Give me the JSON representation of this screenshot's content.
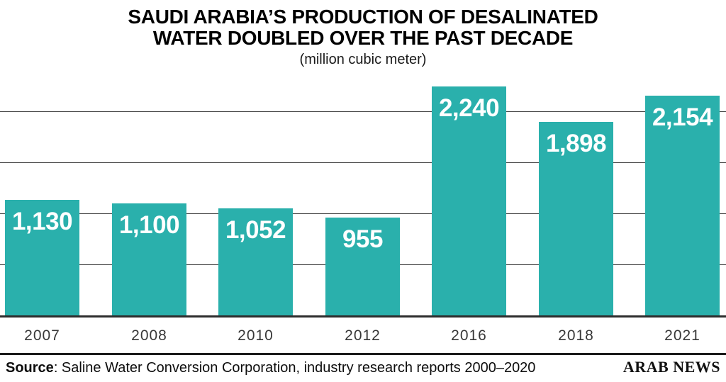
{
  "header": {
    "title_line1": "SAUDI ARABIA’S PRODUCTION OF DESALINATED",
    "title_line2": "WATER DOUBLED OVER THE PAST DECADE",
    "subtitle": "(million cubic meter)"
  },
  "chart_data": {
    "type": "bar",
    "title": "SAUDI ARABIA’S PRODUCTION OF DESALINATED WATER DOUBLED OVER THE PAST DECADE",
    "subtitle": "(million cubic meter)",
    "categories": [
      "2007",
      "2008",
      "2010",
      "2012",
      "2016",
      "2018",
      "2021"
    ],
    "values": [
      1130,
      1100,
      1052,
      955,
      2240,
      1898,
      2154
    ],
    "value_labels": [
      "1,130",
      "1,100",
      "1,052",
      "955",
      "2,240",
      "1,898",
      "2,154"
    ],
    "xlabel": "",
    "ylabel": "",
    "ylim": [
      0,
      2500
    ],
    "gridline_values": [
      500,
      1000,
      1500,
      2000
    ],
    "grid": true,
    "legend_position": "none",
    "bar_color": "#2AB0AC",
    "value_label_color": "#FFFFFF",
    "gridline_color": "#444444",
    "axis_line_color": "#2D2D2D",
    "tick_label_color": "#383838"
  },
  "footer": {
    "source_label": "Source",
    "source_rest": ": Saline Water Conversion Corporation, industry research reports 2000–2020",
    "brand": "ARAB NEWS"
  }
}
